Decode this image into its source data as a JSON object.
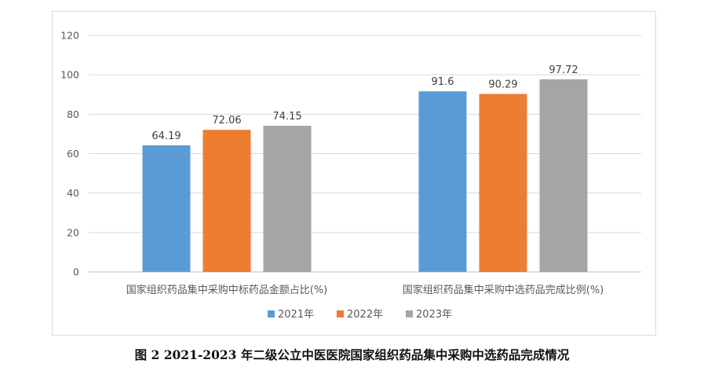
{
  "caption": "图 2 2021-2023 年二级公立中医医院国家组织药品集中采购中选药品完成情况",
  "chart_data": {
    "type": "bar",
    "title": "",
    "xlabel": "",
    "ylabel": "",
    "ylim": [
      0,
      120
    ],
    "yticks": [
      0,
      20,
      40,
      60,
      80,
      100,
      120
    ],
    "grid": true,
    "legend_position": "bottom",
    "categories": [
      "国家组织药品集中采购中标药品金额占比(%)",
      "国家组织药品集中采购中选药品完成比例(%)"
    ],
    "series": [
      {
        "name": "2021年",
        "color": "#5b9bd5",
        "values": [
          64.19,
          91.6
        ],
        "labels": [
          "64.19",
          "91.6"
        ]
      },
      {
        "name": "2022年",
        "color": "#ed7d31",
        "values": [
          72.06,
          90.29
        ],
        "labels": [
          "72.06",
          "90.29"
        ]
      },
      {
        "name": "2023年",
        "color": "#a5a5a5",
        "values": [
          74.15,
          97.72
        ],
        "labels": [
          "74.15",
          "97.72"
        ]
      }
    ]
  }
}
